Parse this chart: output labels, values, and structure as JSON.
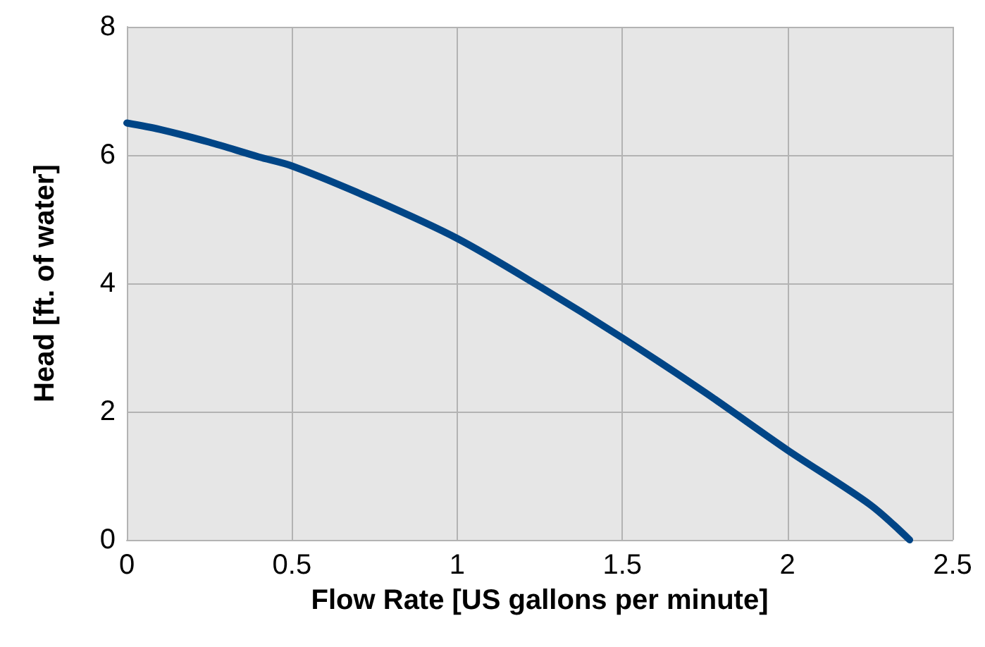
{
  "chart_data": {
    "type": "line",
    "xlabel": "Flow Rate [US gallons per minute]",
    "ylabel": "Head [ft. of water]",
    "x": [
      0,
      0.1,
      0.25,
      0.4,
      0.5,
      0.75,
      1.0,
      1.25,
      1.5,
      1.75,
      2.0,
      2.25,
      2.37
    ],
    "series": [
      {
        "color": "#004586",
        "values": [
          6.5,
          6.4,
          6.2,
          5.97,
          5.83,
          5.3,
          4.7,
          3.95,
          3.15,
          2.3,
          1.4,
          0.55,
          0
        ]
      }
    ],
    "xlim": [
      0,
      2.5
    ],
    "xticks": [
      0,
      0.5,
      1,
      1.5,
      2,
      2.5
    ],
    "ylim": [
      0,
      8
    ],
    "yticks": [
      0,
      2,
      4,
      6,
      8
    ],
    "grid": true,
    "marker": "none",
    "line_style": "solid"
  }
}
